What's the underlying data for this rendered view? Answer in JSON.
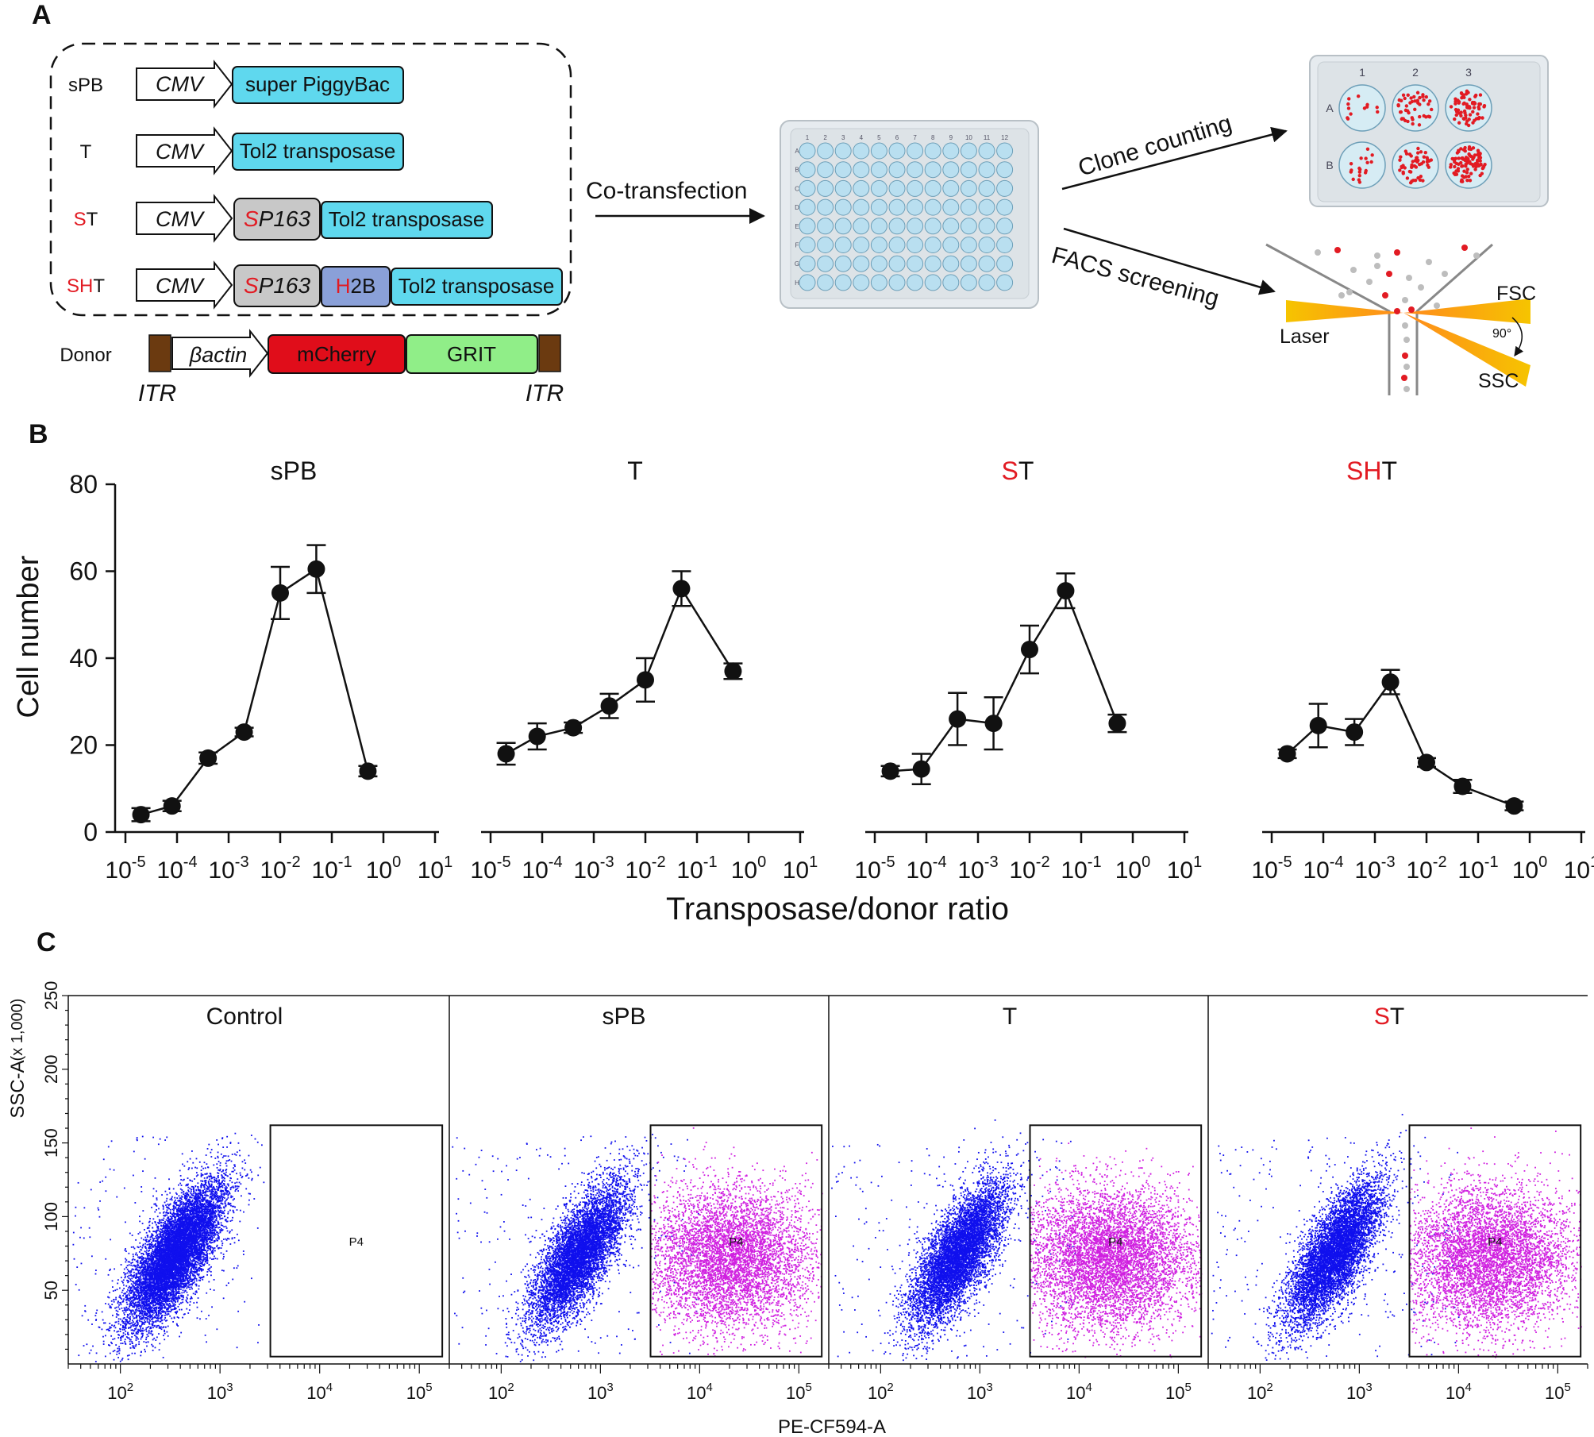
{
  "panels": {
    "a": {
      "letter": "A",
      "constructs": [
        {
          "name": "sPB",
          "name_red": "",
          "name_black": "sPB",
          "promoter": "CMV",
          "parts": [
            "super PiggyBac"
          ]
        },
        {
          "name": "T",
          "name_red": "",
          "name_black": "T",
          "promoter": "CMV",
          "parts": [
            "Tol2 transposase"
          ]
        },
        {
          "name": "ST",
          "name_red": "S",
          "name_black": "T",
          "promoter": "CMV",
          "sp_red": "S",
          "sp_rest": "P163",
          "parts": [
            "Tol2 transposase"
          ]
        },
        {
          "name": "SHT",
          "name_red": "SH",
          "name_black": "T",
          "promoter": "CMV",
          "sp_red": "S",
          "sp_rest": "P163",
          "h2b_red": "H",
          "h2b_rest": "2B",
          "parts": [
            "Tol2 transposase"
          ]
        }
      ],
      "donor": {
        "label": "Donor",
        "promoter": "βactin",
        "parts": [
          "mCherry",
          "GRIT"
        ],
        "itr_left": "ITR",
        "itr_right": "ITR"
      },
      "cotransfection": "Co-transfection",
      "clone_counting": "Clone counting",
      "facs_screening": "FACS screening",
      "plate96": {
        "cols": [
          "1",
          "2",
          "3",
          "4",
          "5",
          "6",
          "7",
          "8",
          "9",
          "10",
          "11",
          "12"
        ],
        "rows": [
          "A",
          "B",
          "C",
          "D",
          "E",
          "F",
          "G",
          "H"
        ]
      },
      "plate6": {
        "cols": [
          "1",
          "2",
          "3"
        ],
        "rows": [
          "A",
          "B"
        ],
        "dots_per_well": [
          [
            12,
            45,
            70
          ],
          [
            18,
            50,
            90
          ]
        ]
      },
      "facs": {
        "fsc": "FSC",
        "ssc": "SSC",
        "laser": "Laser",
        "angle": "90°"
      },
      "colors": {
        "cyan": "#5fd8ee",
        "gray": "#c8c8c8",
        "h2b": "#8aa0d8",
        "mcherry": "#e00d1a",
        "grit": "#90ee88",
        "itr": "#6b3a10",
        "red": "#e21b23",
        "well": "#b9dff0"
      }
    },
    "b": {
      "letter": "B",
      "ylabel": "Cell number",
      "xlabel": "Transposase/donor ratio",
      "yticks": [
        "0",
        "20",
        "40",
        "60",
        "80"
      ],
      "xtick_exps": [
        "-5",
        "-4",
        "-3",
        "-2",
        "-1",
        "0",
        "1"
      ],
      "xtick_base": "10"
    },
    "c": {
      "letter": "C",
      "ylabel": "SSC-A",
      "ylabel_unit": "(x 1,000)",
      "xlabel": "PE-CF594-A",
      "yticks": [
        "50",
        "100",
        "150",
        "200",
        "250"
      ],
      "xtick_exps": [
        "2",
        "3",
        "4",
        "5"
      ],
      "xtick_base": "10",
      "gate_label": "P4",
      "colors": {
        "negative": "#1010ee",
        "positive": "#d020e0"
      }
    }
  },
  "chart_data": [
    {
      "type": "line",
      "title": "sPB",
      "title_red": "",
      "title_black": "sPB",
      "x_scale": "log",
      "xlim": [
        1e-05,
        10
      ],
      "ylim": [
        0,
        80
      ],
      "x": [
        2e-05,
        8e-05,
        0.0004,
        0.002,
        0.01,
        0.05,
        0.5
      ],
      "y": [
        4,
        6,
        17,
        23,
        55,
        60.5,
        14
      ],
      "err": [
        1.5,
        1.2,
        1.3,
        1.0,
        6,
        5.5,
        1.2
      ]
    },
    {
      "type": "line",
      "title": "T",
      "title_red": "",
      "title_black": "T",
      "x_scale": "log",
      "xlim": [
        1e-05,
        10
      ],
      "ylim": [
        0,
        80
      ],
      "x": [
        2e-05,
        8e-05,
        0.0004,
        0.002,
        0.01,
        0.05,
        0.5
      ],
      "y": [
        18,
        22,
        24,
        29,
        35,
        56,
        37
      ],
      "err": [
        2.5,
        3,
        1.2,
        2.8,
        5,
        4,
        1.8
      ]
    },
    {
      "type": "line",
      "title": "ST",
      "title_red": "S",
      "title_black": "T",
      "x_scale": "log",
      "xlim": [
        1e-05,
        10
      ],
      "ylim": [
        0,
        80
      ],
      "x": [
        2e-05,
        8e-05,
        0.0004,
        0.002,
        0.01,
        0.05,
        0.5
      ],
      "y": [
        14,
        14.5,
        26,
        25,
        42,
        55.5,
        25
      ],
      "err": [
        1.2,
        3.5,
        6,
        6,
        5.5,
        4,
        2
      ]
    },
    {
      "type": "line",
      "title": "SHT",
      "title_red": "SH",
      "title_black": "T",
      "x_scale": "log",
      "xlim": [
        1e-05,
        10
      ],
      "ylim": [
        0,
        80
      ],
      "x": [
        2e-05,
        8e-05,
        0.0004,
        0.002,
        0.01,
        0.05,
        0.5
      ],
      "y": [
        18,
        24.5,
        23,
        34.5,
        16,
        10.5,
        6
      ],
      "err": [
        1,
        5,
        3,
        2.8,
        1,
        1.5,
        1
      ]
    },
    {
      "type": "scatter",
      "title": "Control",
      "title_red": "",
      "title_black": "Control",
      "x_scale": "log",
      "xlim": [
        30,
        200000
      ],
      "ylim": [
        0,
        250
      ],
      "gate": {
        "x": [
          3200,
          170000
        ],
        "y": [
          5,
          162
        ]
      },
      "negative_cluster": {
        "x_center": 350,
        "y_center": 75,
        "n": 9000
      },
      "positive_cluster": {
        "n": 0
      }
    },
    {
      "type": "scatter",
      "title": "sPB",
      "title_red": "",
      "title_black": "sPB",
      "x_scale": "log",
      "xlim": [
        30,
        200000
      ],
      "ylim": [
        0,
        250
      ],
      "gate": {
        "x": [
          3200,
          170000
        ],
        "y": [
          5,
          162
        ]
      },
      "negative_cluster": {
        "x_center": 600,
        "y_center": 75,
        "n": 6500
      },
      "positive_cluster": {
        "x_center": 20000,
        "y_center": 72,
        "n": 5500
      }
    },
    {
      "type": "scatter",
      "title": "T",
      "title_red": "",
      "title_black": "T",
      "x_scale": "log",
      "xlim": [
        30,
        200000
      ],
      "ylim": [
        0,
        250
      ],
      "gate": {
        "x": [
          3200,
          170000
        ],
        "y": [
          5,
          162
        ]
      },
      "negative_cluster": {
        "x_center": 600,
        "y_center": 75,
        "n": 6500
      },
      "positive_cluster": {
        "x_center": 20000,
        "y_center": 72,
        "n": 6000
      }
    },
    {
      "type": "scatter",
      "title": "ST",
      "title_red": "S",
      "title_black": "T",
      "x_scale": "log",
      "xlim": [
        30,
        200000
      ],
      "ylim": [
        0,
        250
      ],
      "gate": {
        "x": [
          3200,
          170000
        ],
        "y": [
          5,
          162
        ]
      },
      "negative_cluster": {
        "x_center": 550,
        "y_center": 75,
        "n": 6500
      },
      "positive_cluster": {
        "x_center": 20000,
        "y_center": 72,
        "n": 5500
      }
    }
  ]
}
